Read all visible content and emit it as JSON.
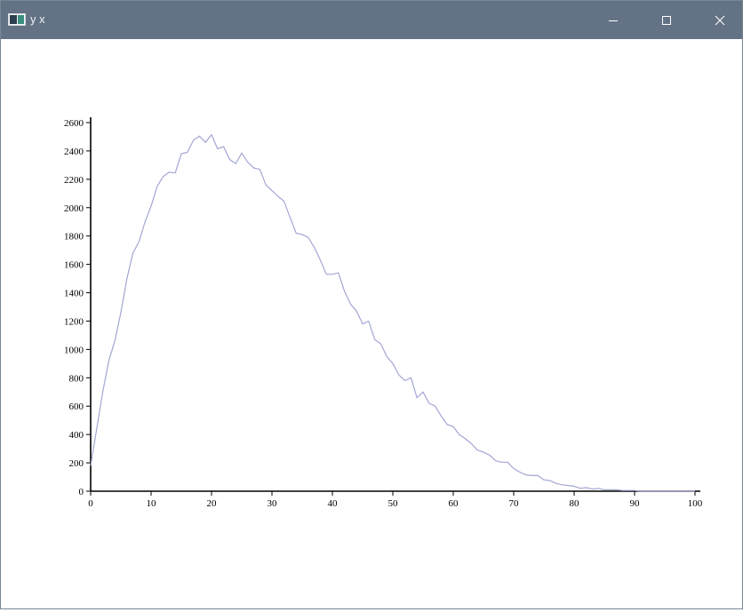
{
  "window": {
    "title": "y x",
    "app_icon": "chart-window-icon",
    "controls": [
      "minimize-icon",
      "maximize-icon",
      "close-icon"
    ],
    "titlebar_color": "#637285"
  },
  "chart_data": {
    "type": "line",
    "title": "",
    "xlabel": "",
    "ylabel": "",
    "xlim": [
      0,
      100
    ],
    "ylim": [
      0,
      2600
    ],
    "xticks": [
      0,
      10,
      20,
      30,
      40,
      50,
      60,
      70,
      80,
      90,
      100
    ],
    "yticks": [
      0,
      200,
      400,
      600,
      800,
      1000,
      1200,
      1400,
      1600,
      1800,
      2000,
      2200,
      2400,
      2600
    ],
    "grid": false,
    "line_color": "#a3a6d4",
    "series": [
      {
        "x": [
          0,
          1,
          2,
          3,
          4,
          5,
          6,
          7,
          8,
          9,
          10,
          11,
          12,
          13,
          14,
          15,
          16,
          17,
          18,
          19,
          20,
          21,
          22,
          23,
          24,
          25,
          26,
          27,
          28,
          29,
          30,
          31,
          32,
          33,
          34,
          35,
          36,
          37,
          38,
          39,
          40,
          41,
          42,
          43,
          44,
          45,
          46,
          47,
          48,
          49,
          50,
          51,
          52,
          53,
          54,
          55,
          56,
          57,
          58,
          59,
          60,
          61,
          62,
          63,
          64,
          65,
          66,
          67,
          68,
          69,
          70,
          71,
          72,
          73,
          74,
          75,
          76,
          77,
          78,
          79,
          80,
          81,
          82,
          83,
          84,
          85,
          86,
          87,
          88,
          89,
          90,
          91,
          92,
          93,
          94,
          95,
          96,
          97,
          98,
          99,
          100
        ],
        "values": [
          180,
          440,
          700,
          920,
          1060,
          1260,
          1500,
          1680,
          1760,
          1900,
          2010,
          2150,
          2220,
          2250,
          2245,
          2380,
          2390,
          2475,
          2505,
          2460,
          2515,
          2415,
          2430,
          2340,
          2310,
          2385,
          2320,
          2280,
          2270,
          2160,
          2120,
          2080,
          2045,
          1930,
          1820,
          1810,
          1790,
          1720,
          1630,
          1530,
          1530,
          1540,
          1410,
          1320,
          1270,
          1180,
          1200,
          1070,
          1040,
          950,
          900,
          820,
          780,
          800,
          660,
          700,
          620,
          600,
          530,
          470,
          455,
          400,
          370,
          335,
          290,
          275,
          255,
          215,
          205,
          205,
          160,
          135,
          115,
          110,
          110,
          80,
          75,
          55,
          45,
          40,
          35,
          20,
          25,
          15,
          20,
          10,
          10,
          10,
          5,
          5,
          5,
          0,
          0,
          0,
          0,
          0,
          0,
          0,
          0,
          0,
          0
        ]
      }
    ]
  }
}
